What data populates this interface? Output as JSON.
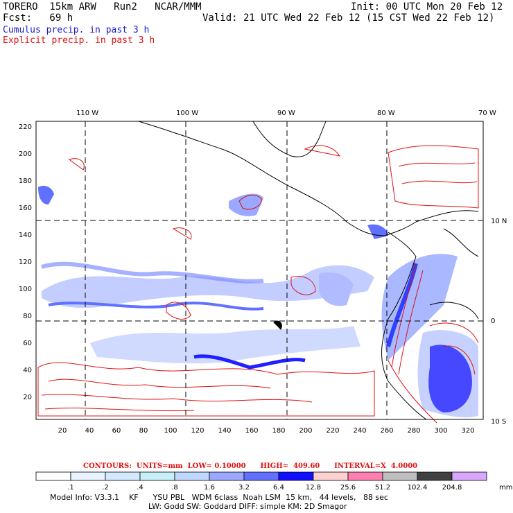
{
  "header": {
    "model": "TORERO  15km ARW   Run2   NCAR/MMM",
    "init": "Init: 00 UTC Mon 20 Feb 12",
    "fcst": "Fcst:   69 h",
    "valid": "Valid: 21 UTC Wed 22 Feb 12 (15 CST Wed 22 Feb 12)",
    "cumulus": "Cumulus precip. in past 3 h",
    "explicit": "Explicit precip. in past 3 h"
  },
  "map": {
    "top_lon_labels": [
      "110 W",
      "100 W",
      "90 W",
      "80 W",
      "70 W"
    ],
    "right_lat_labels": [
      "10 N",
      "0",
      "10 S"
    ],
    "left_ticks": [
      "220",
      "200",
      "180",
      "160",
      "140",
      "120",
      "100",
      "80",
      "60",
      "40",
      "20"
    ],
    "bottom_ticks": [
      "20",
      "40",
      "60",
      "80",
      "100",
      "120",
      "140",
      "160",
      "180",
      "200",
      "220",
      "240",
      "260",
      "280",
      "300",
      "320"
    ]
  },
  "contours": {
    "text": "CONTOURS:  UNITS=mm  LOW= 0.10000      HIGH=  409.60      INTERVAL=X  4.0000"
  },
  "colorbar": {
    "unit": "mm",
    "labels": [
      ".1",
      ".2",
      ".4",
      ".8",
      "1.6",
      "3.2",
      "6.4",
      "12.8",
      "25.6",
      "51.2",
      "102.4",
      "204.8"
    ],
    "colors": [
      "#ffffff",
      "#e8f4ff",
      "#d4e8ff",
      "#c8f0f8",
      "#c0d8ff",
      "#9aa8ff",
      "#6070ff",
      "#1010ff",
      "#ffd0d0",
      "#ff80b0",
      "#c0c0c0",
      "#404040",
      "#d8a8ff"
    ]
  },
  "footer": {
    "line1": "Model Info: V3.3.1    KF      YSU PBL   WDM 6class  Noah LSM  15 km,   44 levels,   88 sec",
    "line2": "LW: Godd SW: Goddard DIFF: simple KM: 2D Smagor"
  }
}
